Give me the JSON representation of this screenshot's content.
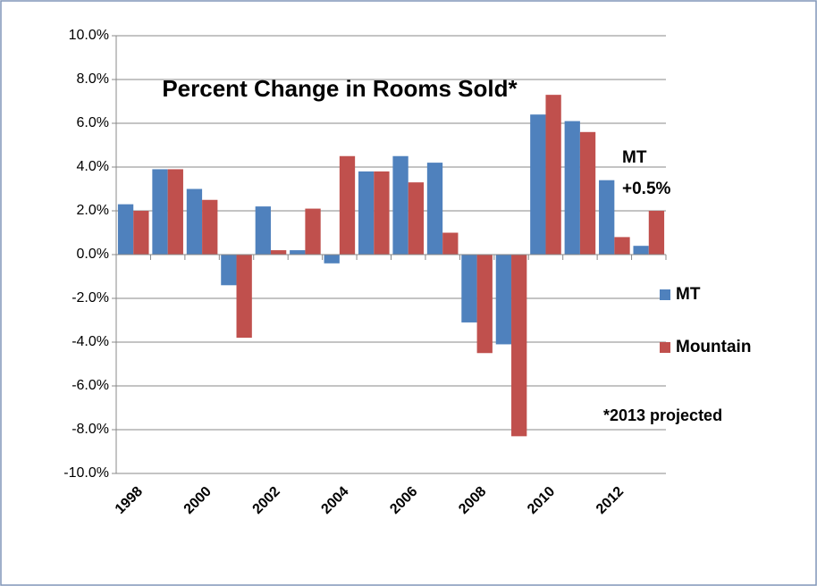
{
  "chart_data": {
    "type": "bar",
    "title": "Percent Change in Rooms Sold*",
    "categories": [
      "1998",
      null,
      "2000",
      null,
      "2002",
      null,
      "2004",
      null,
      "2006",
      null,
      "2008",
      null,
      "2010",
      null,
      "2012",
      null
    ],
    "series": [
      {
        "name": "MT",
        "color": "#4f81bd",
        "values": [
          2.3,
          3.9,
          3.0,
          -1.4,
          2.2,
          0.2,
          -0.4,
          3.8,
          4.5,
          4.2,
          -3.1,
          -4.1,
          6.4,
          6.1,
          3.4,
          0.4
        ]
      },
      {
        "name": "Mountain",
        "color": "#c0504d",
        "values": [
          2.0,
          3.9,
          2.5,
          -3.8,
          0.2,
          2.1,
          4.5,
          3.8,
          3.3,
          1.0,
          -4.5,
          -8.3,
          7.3,
          5.6,
          0.8,
          2.0
        ]
      }
    ],
    "ylim": [
      -10,
      10
    ],
    "yticks": [
      {
        "value": -10,
        "label": "-10.0%"
      },
      {
        "value": -8,
        "label": "-8.0%"
      },
      {
        "value": -6,
        "label": "-6.0%"
      },
      {
        "value": -4,
        "label": "-4.0%"
      },
      {
        "value": -2,
        "label": "-2.0%"
      },
      {
        "value": 0,
        "label": "0.0%"
      },
      {
        "value": 2,
        "label": "2.0%"
      },
      {
        "value": 4,
        "label": "4.0%"
      },
      {
        "value": 6,
        "label": "6.0%"
      },
      {
        "value": 8,
        "label": "8.0%"
      },
      {
        "value": 10,
        "label": "10.0%"
      }
    ],
    "grid": true,
    "legend": "right",
    "annotations": [
      "MT",
      "+0.5%",
      "*2013 projected"
    ]
  }
}
